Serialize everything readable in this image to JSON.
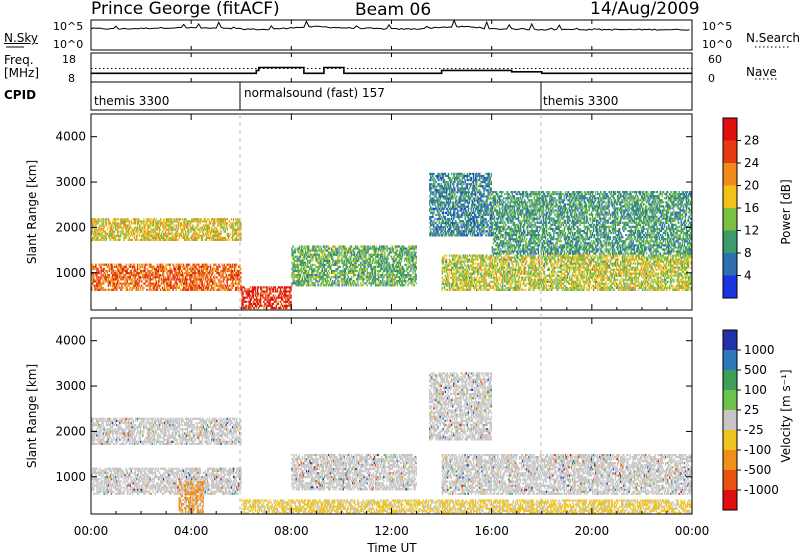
{
  "header": {
    "station": "Prince George (fitACF)",
    "beam": "Beam 06",
    "date": "14/Aug/2009"
  },
  "strip": {
    "nsky_label": "N.Sky",
    "nsky_ticks": [
      "10^5",
      "10^0"
    ],
    "nsearch_label": "N.Search",
    "nsearch_ticks": [
      "10^5",
      "10^0"
    ],
    "freq_label": "Freq.",
    "freq_unit": "[MHz]",
    "freq_ticks": [
      "18",
      "8"
    ],
    "nave_label": "Nave",
    "nave_ticks": [
      "60",
      "0"
    ],
    "cpid_label": "CPID",
    "cpid_segments": [
      "themis 3300",
      "normalsound (fast) 157",
      "themis 3300"
    ]
  },
  "x_axis": {
    "label": "Time UT",
    "ticks": [
      "00:00",
      "04:00",
      "08:00",
      "12:00",
      "16:00",
      "20:00",
      "00:00"
    ],
    "range_hours": [
      0,
      24
    ]
  },
  "power_panel": {
    "ylabel": "Slant Range [km]",
    "yticks": [
      "1000",
      "2000",
      "3000",
      "4000"
    ],
    "colorbar_label": "Power [dB]",
    "colorbar_ticks": [
      "4",
      "8",
      "12",
      "16",
      "20",
      "24",
      "28"
    ],
    "colors": [
      "#1b35e0",
      "#2f6fb0",
      "#3d9a6a",
      "#7ac143",
      "#f2c21a",
      "#f08a1a",
      "#e83a12",
      "#e10e0e"
    ]
  },
  "velocity_panel": {
    "ylabel": "Slant Range [km]",
    "yticks": [
      "1000",
      "2000",
      "3000",
      "4000"
    ],
    "colorbar_label": "Velocity [m s⁻¹]",
    "colorbar_ticks": [
      "1000",
      "500",
      "100",
      "25",
      "-25",
      "-100",
      "-500",
      "-1000"
    ],
    "colors": [
      "#2233aa",
      "#2d78b8",
      "#3e9d58",
      "#6cc24a",
      "#c7c7c7",
      "#f0c420",
      "#f0901a",
      "#e8520f",
      "#e00f0f"
    ]
  },
  "chart_data": [
    {
      "type": "line",
      "name": "N.Sky",
      "x_hours": [
        0,
        1,
        2,
        3,
        4,
        5,
        6,
        7,
        8,
        9,
        10,
        11,
        12,
        13,
        14,
        15,
        16,
        17,
        18,
        19,
        20,
        21,
        22,
        23,
        24
      ],
      "values_log10": [
        3.5,
        3.4,
        3.5,
        3.6,
        3.6,
        3.5,
        3.4,
        3.3,
        3.6,
        3.8,
        3.6,
        3.5,
        3.4,
        3.4,
        3.7,
        3.8,
        3.4,
        3.4,
        3.3,
        3.3,
        3.3,
        3.3,
        3.3,
        3.3,
        3.3
      ],
      "ylim_log10": [
        0,
        5
      ]
    },
    {
      "type": "line",
      "name": "Freq.",
      "x_hours": [
        0,
        6,
        6.6,
        6.7,
        8.3,
        8.5,
        9.1,
        9.3,
        9.9,
        10.1,
        13.5,
        14,
        16.2,
        16.8,
        18,
        24
      ],
      "values": [
        11,
        11,
        12,
        13,
        13,
        11,
        11,
        13,
        13,
        11,
        11,
        12,
        12,
        11.5,
        11,
        11
      ],
      "ylim": [
        8,
        18
      ],
      "nave_dotted": 28,
      "nave_ylim": [
        0,
        60
      ]
    },
    {
      "type": "heatmap",
      "name": "Power",
      "x_range_hours": [
        0,
        24
      ],
      "y_range_km": [
        180,
        4500
      ],
      "regions": [
        {
          "t": [
            0,
            6
          ],
          "r": [
            600,
            1200
          ],
          "level": 24
        },
        {
          "t": [
            0,
            6
          ],
          "r": [
            1700,
            2200
          ],
          "level": 18
        },
        {
          "t": [
            6,
            8
          ],
          "r": [
            200,
            700
          ],
          "level": 28
        },
        {
          "t": [
            8,
            13
          ],
          "r": [
            700,
            1600
          ],
          "level": 12
        },
        {
          "t": [
            13.5,
            16
          ],
          "r": [
            1800,
            3200
          ],
          "level": 8
        },
        {
          "t": [
            14,
            24
          ],
          "r": [
            600,
            1400
          ],
          "level": 16
        },
        {
          "t": [
            16,
            24
          ],
          "r": [
            1400,
            2800
          ],
          "level": 10
        }
      ]
    },
    {
      "type": "heatmap",
      "name": "Velocity",
      "x_range_hours": [
        0,
        24
      ],
      "y_range_km": [
        180,
        4500
      ],
      "regions": [
        {
          "t": [
            0,
            6
          ],
          "r": [
            600,
            1200
          ],
          "level": 0
        },
        {
          "t": [
            0,
            6
          ],
          "r": [
            1700,
            2300
          ],
          "level": 0
        },
        {
          "t": [
            3.5,
            4.5
          ],
          "r": [
            200,
            900
          ],
          "level": -300
        },
        {
          "t": [
            6,
            24
          ],
          "r": [
            180,
            500
          ],
          "level": -200
        },
        {
          "t": [
            8,
            13
          ],
          "r": [
            700,
            1500
          ],
          "level": 0
        },
        {
          "t": [
            13.5,
            16
          ],
          "r": [
            1800,
            3300
          ],
          "level": 0
        },
        {
          "t": [
            14,
            24
          ],
          "r": [
            600,
            1500
          ],
          "level": 0
        }
      ]
    }
  ]
}
